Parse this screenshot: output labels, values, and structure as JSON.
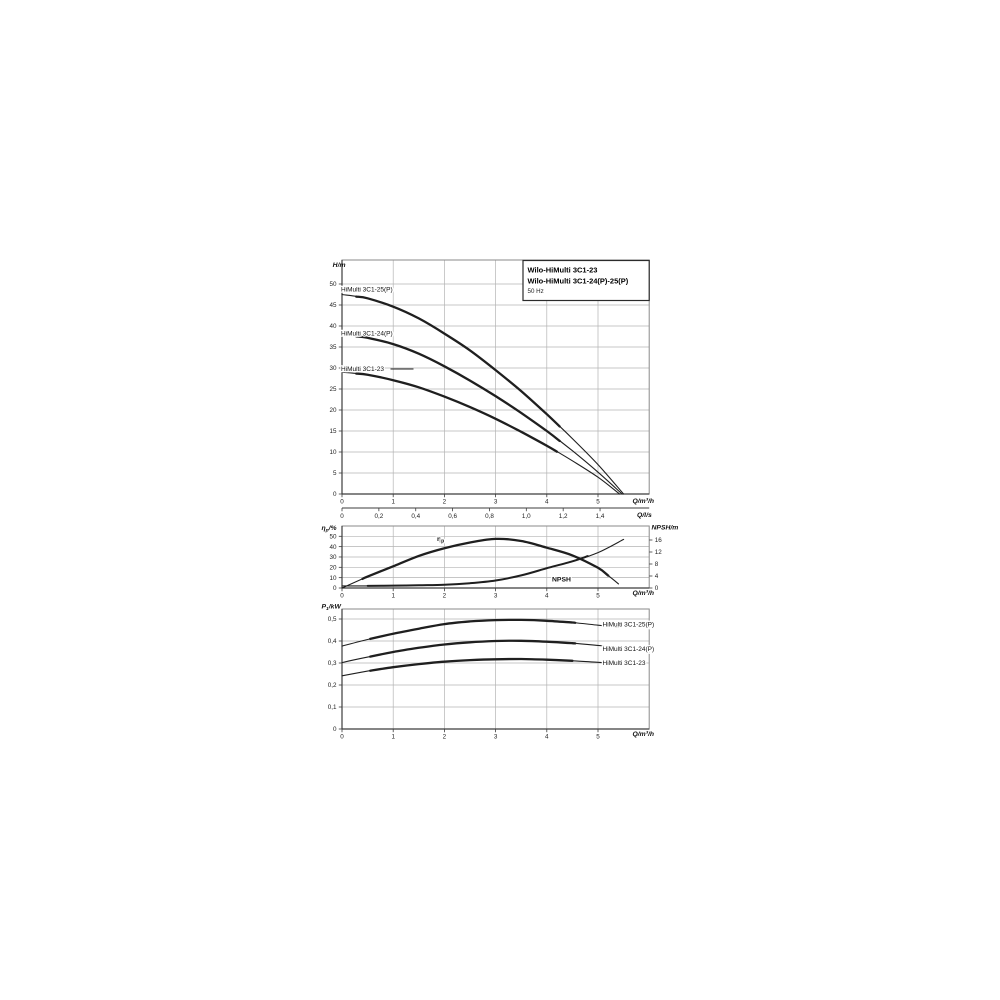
{
  "title_box": {
    "line1": "Wilo-HiMulti 3C1-23",
    "line2": "Wilo-HiMulti 3C1-24(P)-25(P)",
    "line3": "50 Hz"
  },
  "chart_data": [
    {
      "id": "head",
      "type": "line",
      "xlabel": "Q/m³/h",
      "xlabel2": "Q/l/s",
      "ylabel": "H/m",
      "xlim": [
        0,
        6
      ],
      "ylim": [
        0,
        55.7
      ],
      "grid": true,
      "xticks": [
        {
          "v": 0,
          "t": "0"
        },
        {
          "v": 1,
          "t": "1"
        },
        {
          "v": 2,
          "t": "2"
        },
        {
          "v": 3,
          "t": "3"
        },
        {
          "v": 4,
          "t": "4"
        },
        {
          "v": 5,
          "t": "5"
        }
      ],
      "yticks": [
        {
          "v": 0,
          "t": "0"
        },
        {
          "v": 5,
          "t": "5"
        },
        {
          "v": 10,
          "t": "10"
        },
        {
          "v": 15,
          "t": "15"
        },
        {
          "v": 20,
          "t": "20"
        },
        {
          "v": 25,
          "t": "25"
        },
        {
          "v": 30,
          "t": "30"
        },
        {
          "v": 35,
          "t": "35"
        },
        {
          "v": 40,
          "t": "40"
        },
        {
          "v": 45,
          "t": "45"
        },
        {
          "v": 50,
          "t": "50"
        }
      ],
      "x2_factor_to_m3h": 3.6,
      "x2ticks": [
        {
          "v": 0,
          "t": "0"
        },
        {
          "v": 0.2,
          "t": "0,2"
        },
        {
          "v": 0.4,
          "t": "0,4"
        },
        {
          "v": 0.6,
          "t": "0,6"
        },
        {
          "v": 0.8,
          "t": "0,8"
        },
        {
          "v": 1.0,
          "t": "1,0"
        },
        {
          "v": 1.2,
          "t": "1,2"
        },
        {
          "v": 1.4,
          "t": "1,4"
        }
      ],
      "series": [
        {
          "name": "HiMulti 3C1-25(P)",
          "emphasis": [
            0.28,
            4.25
          ],
          "points": [
            [
              0,
              47.5
            ],
            [
              0.5,
              46.6
            ],
            [
              1,
              44.6
            ],
            [
              1.5,
              41.8
            ],
            [
              2,
              38.2
            ],
            [
              2.5,
              34.2
            ],
            [
              3,
              29.5
            ],
            [
              3.5,
              24.5
            ],
            [
              4,
              19.0
            ],
            [
              4.5,
              13.2
            ],
            [
              5,
              7.0
            ],
            [
              5.5,
              0
            ]
          ]
        },
        {
          "name": "HiMulti 3C1-24(P)",
          "emphasis": [
            0.28,
            4.25
          ],
          "points": [
            [
              0,
              38.0
            ],
            [
              0.5,
              37.2
            ],
            [
              1,
              35.7
            ],
            [
              1.5,
              33.4
            ],
            [
              2,
              30.4
            ],
            [
              2.5,
              27.0
            ],
            [
              3,
              23.3
            ],
            [
              3.5,
              19.3
            ],
            [
              4,
              15.0
            ],
            [
              4.5,
              10.3
            ],
            [
              5,
              5.2
            ],
            [
              5.47,
              0
            ]
          ]
        },
        {
          "name": "HiMulti 3C1-23",
          "emphasis": [
            0.28,
            4.2
          ],
          "points": [
            [
              0,
              29.0
            ],
            [
              0.5,
              28.4
            ],
            [
              1,
              27.1
            ],
            [
              1.5,
              25.4
            ],
            [
              2,
              23.2
            ],
            [
              2.5,
              20.7
            ],
            [
              3,
              17.9
            ],
            [
              3.5,
              14.8
            ],
            [
              4,
              11.5
            ],
            [
              4.5,
              7.9
            ],
            [
              5,
              4.0
            ],
            [
              5.42,
              0
            ]
          ]
        }
      ]
    },
    {
      "id": "eff",
      "type": "line",
      "xlabel": "Q/m³/h",
      "ylabel_left": {
        "symbol": "η",
        "sub": "p",
        "unit": "/%"
      },
      "ylabel_right": "NPSH/m",
      "xlim": [
        0,
        6
      ],
      "ylim_left": [
        0,
        60
      ],
      "ylim_right": [
        0,
        20.7
      ],
      "grid": true,
      "xticks": [
        {
          "v": 0,
          "t": "0"
        },
        {
          "v": 1,
          "t": "1"
        },
        {
          "v": 2,
          "t": "2"
        },
        {
          "v": 3,
          "t": "3"
        },
        {
          "v": 4,
          "t": "4"
        },
        {
          "v": 5,
          "t": "5"
        }
      ],
      "yticks_left": [
        {
          "v": 0,
          "t": "0"
        },
        {
          "v": 10,
          "t": "10"
        },
        {
          "v": 20,
          "t": "20"
        },
        {
          "v": 30,
          "t": "30"
        },
        {
          "v": 40,
          "t": "40"
        },
        {
          "v": 50,
          "t": "50"
        }
      ],
      "yticks_right": [
        {
          "v": 0,
          "t": "0"
        },
        {
          "v": 4,
          "t": "4"
        },
        {
          "v": 8,
          "t": "8"
        },
        {
          "v": 12,
          "t": "12"
        },
        {
          "v": 16,
          "t": "16"
        }
      ],
      "series": [
        {
          "name": "ηp",
          "label_symbol": "η",
          "label_sub": "p",
          "axis": "left",
          "emphasis": [
            0.4,
            5.2
          ],
          "points": [
            [
              0,
              0
            ],
            [
              0.5,
              11
            ],
            [
              1,
              21
            ],
            [
              1.5,
              31
            ],
            [
              2,
              38.5
            ],
            [
              2.5,
              44
            ],
            [
              3,
              47.5
            ],
            [
              3.5,
              45.5
            ],
            [
              4,
              39
            ],
            [
              4.5,
              31.5
            ],
            [
              5,
              19.5
            ],
            [
              5.2,
              12
            ],
            [
              5.4,
              4
            ]
          ]
        },
        {
          "name": "NPSH",
          "axis": "right",
          "emphasis": [
            0.5,
            4.8
          ],
          "points": [
            [
              0,
              0.7
            ],
            [
              0.5,
              0.7
            ],
            [
              1,
              0.8
            ],
            [
              1.5,
              0.9
            ],
            [
              2,
              1.1
            ],
            [
              2.5,
              1.6
            ],
            [
              3,
              2.5
            ],
            [
              3.5,
              4.2
            ],
            [
              4,
              6.6
            ],
            [
              4.5,
              8.9
            ],
            [
              5,
              11.8
            ],
            [
              5.5,
              16.2
            ]
          ]
        }
      ]
    },
    {
      "id": "power",
      "type": "line",
      "xlabel": "Q/m³/h",
      "ylabel": {
        "symbol": "P",
        "sub": "1",
        "unit": "/kW"
      },
      "xlim": [
        0,
        6
      ],
      "ylim": [
        0,
        0.545
      ],
      "grid": true,
      "xticks": [
        {
          "v": 0,
          "t": "0"
        },
        {
          "v": 1,
          "t": "1"
        },
        {
          "v": 2,
          "t": "2"
        },
        {
          "v": 3,
          "t": "3"
        },
        {
          "v": 4,
          "t": "4"
        },
        {
          "v": 5,
          "t": "5"
        }
      ],
      "yticks": [
        {
          "v": 0,
          "t": "0"
        },
        {
          "v": 0.1,
          "t": "0,1"
        },
        {
          "v": 0.2,
          "t": "0,2"
        },
        {
          "v": 0.3,
          "t": "0,3"
        },
        {
          "v": 0.4,
          "t": "0,4"
        },
        {
          "v": 0.5,
          "t": "0,5"
        }
      ],
      "series": [
        {
          "name": "HiMulti 3C1-25(P)",
          "emphasis": [
            0.55,
            4.55
          ],
          "points": [
            [
              0,
              0.377
            ],
            [
              0.5,
              0.407
            ],
            [
              1,
              0.433
            ],
            [
              1.5,
              0.456
            ],
            [
              2,
              0.477
            ],
            [
              2.5,
              0.489
            ],
            [
              3,
              0.495
            ],
            [
              3.5,
              0.496
            ],
            [
              4,
              0.492
            ],
            [
              4.5,
              0.484
            ],
            [
              5,
              0.472
            ],
            [
              5.4,
              0.462
            ]
          ]
        },
        {
          "name": "HiMulti 3C1-24(P)",
          "emphasis": [
            0.55,
            4.55
          ],
          "points": [
            [
              0,
              0.302
            ],
            [
              0.5,
              0.327
            ],
            [
              1,
              0.35
            ],
            [
              1.5,
              0.369
            ],
            [
              2,
              0.384
            ],
            [
              2.5,
              0.394
            ],
            [
              3,
              0.4
            ],
            [
              3.5,
              0.401
            ],
            [
              4,
              0.397
            ],
            [
              4.5,
              0.39
            ],
            [
              5,
              0.38
            ],
            [
              5.4,
              0.372
            ]
          ]
        },
        {
          "name": "HiMulti 3C1-23",
          "emphasis": [
            0.55,
            4.5
          ],
          "points": [
            [
              0,
              0.242
            ],
            [
              0.5,
              0.263
            ],
            [
              1,
              0.281
            ],
            [
              1.5,
              0.295
            ],
            [
              2,
              0.306
            ],
            [
              2.5,
              0.313
            ],
            [
              3,
              0.317
            ],
            [
              3.5,
              0.318
            ],
            [
              4,
              0.315
            ],
            [
              4.5,
              0.31
            ],
            [
              5,
              0.303
            ],
            [
              5.35,
              0.297
            ]
          ]
        }
      ]
    }
  ]
}
